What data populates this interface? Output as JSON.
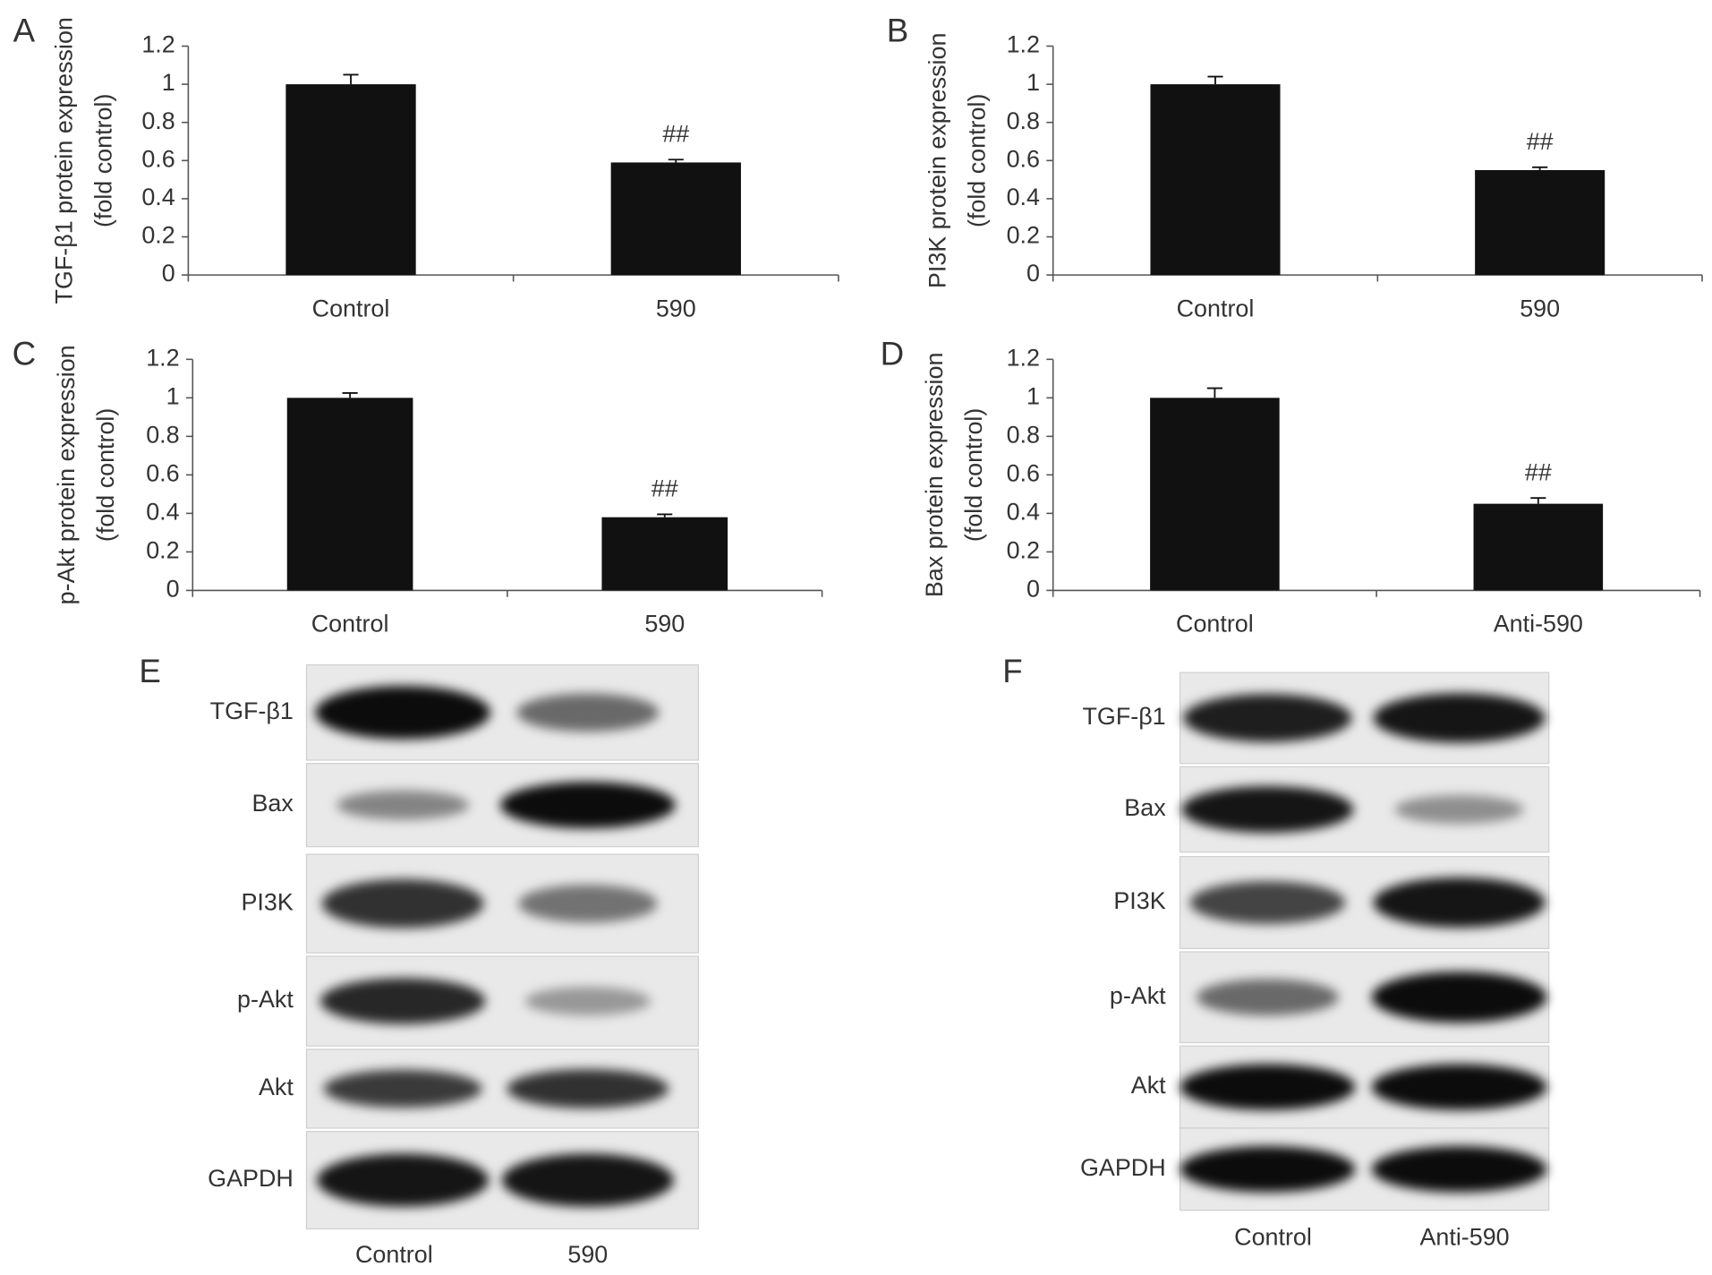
{
  "chart_data": [
    {
      "type": "bar",
      "panel": "A",
      "y_label": [
        "TGF-β1 protein expression",
        "(fold control)"
      ],
      "categories": [
        "Control",
        "590"
      ],
      "values": [
        1.0,
        0.59
      ],
      "errors": [
        0.05,
        0.015
      ],
      "annotations": [
        null,
        "##"
      ],
      "color": "#111111",
      "ylim": [
        0,
        1.2
      ],
      "yticks": [
        0,
        0.2,
        0.4,
        0.6,
        0.8,
        1,
        1.2
      ]
    },
    {
      "type": "bar",
      "panel": "B",
      "y_label": [
        "PI3K protein expression",
        "(fold control)"
      ],
      "categories": [
        "Control",
        "590"
      ],
      "values": [
        1.0,
        0.55
      ],
      "errors": [
        0.04,
        0.015
      ],
      "annotations": [
        null,
        "##"
      ],
      "color": "#111111",
      "ylim": [
        0,
        1.2
      ],
      "yticks": [
        0,
        0.2,
        0.4,
        0.6,
        0.8,
        1,
        1.2
      ]
    },
    {
      "type": "bar",
      "panel": "C",
      "y_label": [
        "p-Akt protein expression",
        "(fold control)"
      ],
      "categories": [
        "Control",
        "590"
      ],
      "values": [
        1.0,
        0.38
      ],
      "errors": [
        0.025,
        0.015
      ],
      "annotations": [
        null,
        "##"
      ],
      "color": "#111111",
      "ylim": [
        0,
        1.2
      ],
      "yticks": [
        0,
        0.2,
        0.4,
        0.6,
        0.8,
        1,
        1.2
      ]
    },
    {
      "type": "bar",
      "panel": "D",
      "y_label": [
        "Bax protein expression",
        "(fold control)"
      ],
      "categories": [
        "Control",
        "Anti-590"
      ],
      "values": [
        1.0,
        0.45
      ],
      "errors": [
        0.05,
        0.03
      ],
      "annotations": [
        null,
        "##"
      ],
      "color": "#111111",
      "ylim": [
        0,
        1.2
      ],
      "yticks": [
        0,
        0.2,
        0.4,
        0.6,
        0.8,
        1,
        1.2
      ]
    }
  ],
  "blots": [
    {
      "panel": "E",
      "proteins": [
        "TGF-β1",
        "Bax",
        "PI3K",
        "p-Akt",
        "Akt",
        "GAPDH"
      ],
      "lanes": [
        "Control",
        "590"
      ]
    },
    {
      "panel": "F",
      "proteins": [
        "TGF-β1",
        "Bax",
        "PI3K",
        "p-Akt",
        "Akt",
        "GAPDH"
      ],
      "lanes": [
        "Control",
        "Anti-590"
      ]
    }
  ]
}
